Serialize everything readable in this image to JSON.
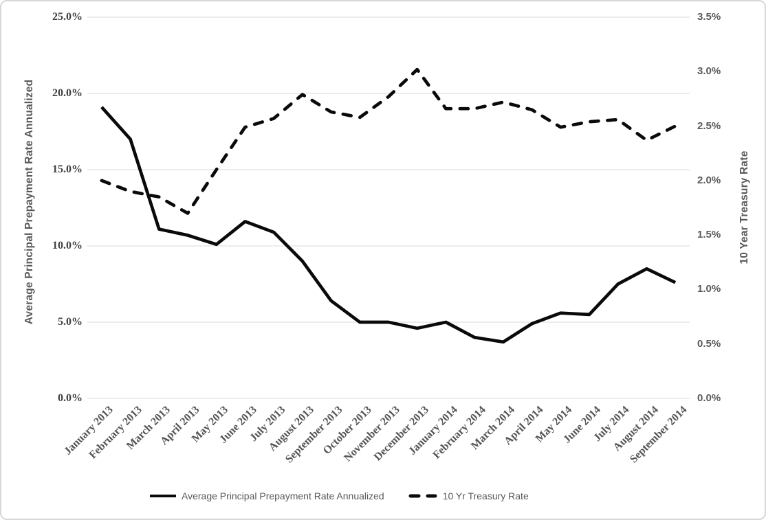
{
  "chart_data": {
    "type": "line",
    "categories": [
      "January 2013",
      "February 2013",
      "March 2013",
      "April 2013",
      "May 2013",
      "June 2013",
      "July 2013",
      "August 2013",
      "September 2013",
      "October 2013",
      "November 2013",
      "December 2013",
      "January 2014",
      "February 2014",
      "March 2014",
      "April 2014",
      "May 2014",
      "June 2014",
      "July 2014",
      "August 2014",
      "September 2014"
    ],
    "series": [
      {
        "name": "Average Principal Prepayment Rate Annualized",
        "axis": "left",
        "style": "solid",
        "values": [
          19.1,
          17.0,
          11.1,
          10.7,
          10.1,
          11.6,
          10.9,
          9.0,
          6.4,
          5.0,
          5.0,
          4.6,
          5.0,
          4.0,
          3.7,
          4.9,
          5.6,
          5.5,
          7.5,
          8.5,
          7.6
        ]
      },
      {
        "name": "10 Yr Treasury Rate",
        "axis": "right",
        "style": "dashed",
        "values": [
          2.0,
          1.9,
          1.85,
          1.7,
          2.1,
          2.49,
          2.57,
          2.79,
          2.63,
          2.58,
          2.77,
          3.02,
          2.66,
          2.66,
          2.72,
          2.65,
          2.49,
          2.54,
          2.56,
          2.37,
          2.5
        ]
      }
    ],
    "left_axis": {
      "title": "Average Principal Prepayment Rate Annualized",
      "min": 0,
      "max": 25,
      "step": 5,
      "tick_labels": [
        "0.0%",
        "5.0%",
        "10.0%",
        "15.0%",
        "20.0%",
        "25.0%"
      ]
    },
    "right_axis": {
      "title": "10 Year Treasury Rate",
      "min": 0,
      "max": 3.5,
      "step": 0.5,
      "tick_labels": [
        "0.0%",
        "0.5%",
        "1.0%",
        "1.5%",
        "2.0%",
        "2.5%",
        "3.0%",
        "3.5%"
      ]
    },
    "legend": {
      "position": "bottom"
    },
    "grid": true,
    "colors": {
      "series_line": "#0a0a0a",
      "gridline": "#d9d9d9",
      "left_tick_text": "#404040",
      "x_tick_text": "#545454",
      "right_tick_text": "#595959",
      "axis_title_text": "#595959",
      "legend_text": "#595959",
      "frame_border": "#d7d7d7"
    }
  }
}
